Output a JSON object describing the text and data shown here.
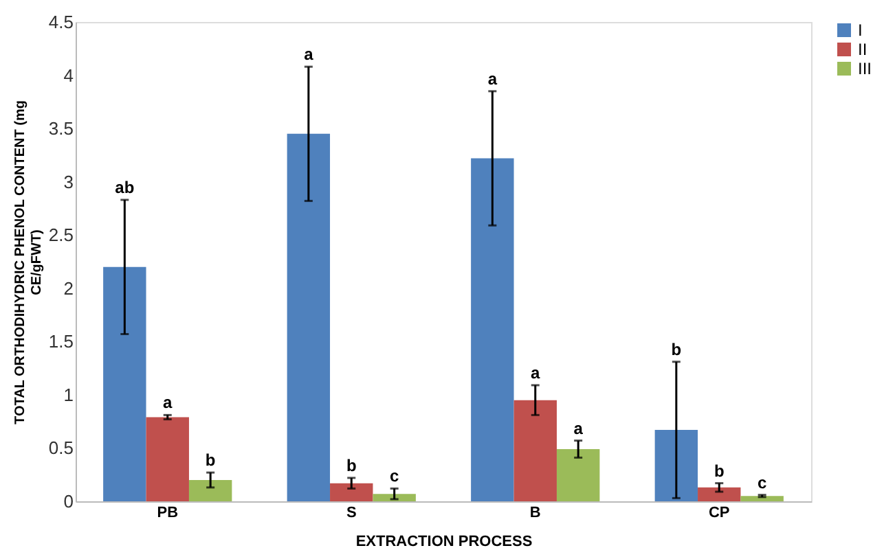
{
  "chart_data": {
    "type": "bar",
    "xlabel": "EXTRACTION PROCESS",
    "ylabel": "TOTAL ORTHODIHYDRIC PHENOL CONTENT (mg CE/gFWT)",
    "categories": [
      "PB",
      "S",
      "B",
      "CP"
    ],
    "annotations": [
      "ab",
      "a",
      "b",
      "a",
      "b",
      "c",
      "a",
      "a",
      "a",
      "b",
      "b",
      "c"
    ],
    "series": [
      {
        "name": "I",
        "color": "#4f81bd",
        "values": [
          2.2,
          3.45,
          3.22,
          0.67
        ],
        "errors": [
          0.63,
          0.63,
          0.63,
          0.64
        ]
      },
      {
        "name": "II",
        "color": "#c0504d",
        "values": [
          0.79,
          0.17,
          0.95,
          0.13
        ],
        "errors": [
          0.02,
          0.05,
          0.14,
          0.04
        ]
      },
      {
        "name": "III",
        "color": "#9bbb59",
        "values": [
          0.2,
          0.07,
          0.49,
          0.05
        ],
        "errors": [
          0.07,
          0.05,
          0.08,
          0.01
        ]
      }
    ],
    "ylim": [
      0,
      4.5
    ],
    "yticks": [
      0,
      0.5,
      1,
      1.5,
      2,
      2.5,
      3,
      3.5,
      4,
      4.5
    ],
    "grid": false,
    "legend": "right"
  }
}
